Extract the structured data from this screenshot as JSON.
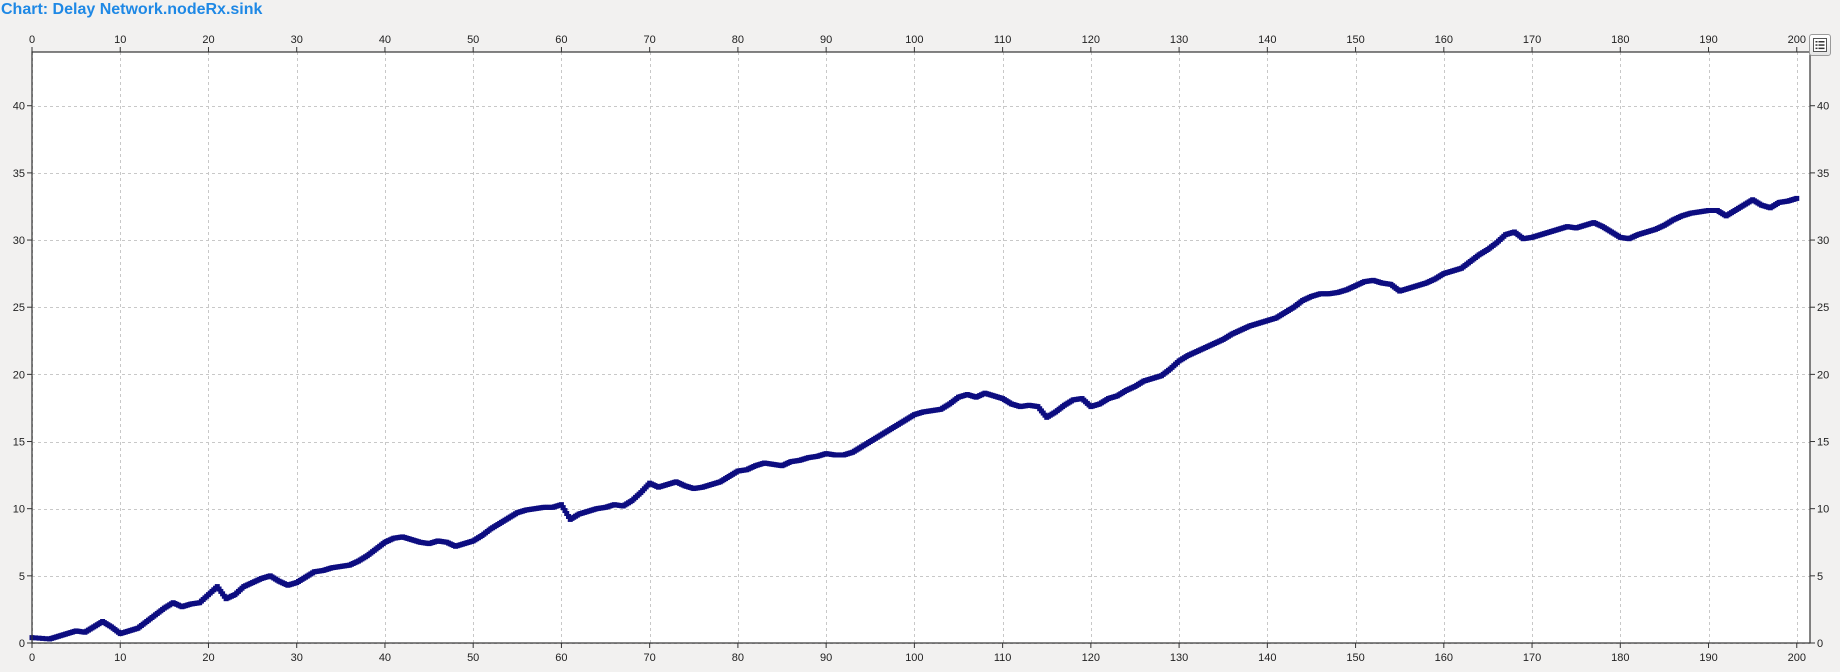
{
  "window": {
    "title": "Chart: Delay Network.nodeRx.sink"
  },
  "colors": {
    "title": "#1e88e5",
    "series": "#0d0d80",
    "grid": "#c8c8c8",
    "plot_bg": "#ffffff",
    "page_bg": "#f2f1f0"
  },
  "icons": {
    "legend_toggle": "legend-list-icon"
  },
  "chart_data": {
    "type": "scatter",
    "title": "Chart: Delay Network.nodeRx.sink",
    "xlabel": "",
    "ylabel": "",
    "xlim": [
      0,
      201.5
    ],
    "ylim": [
      0,
      44
    ],
    "xticks": [
      0,
      10,
      20,
      30,
      40,
      50,
      60,
      70,
      80,
      90,
      100,
      110,
      120,
      130,
      140,
      150,
      160,
      170,
      180,
      190,
      200
    ],
    "yticks": [
      0,
      5,
      10,
      15,
      20,
      25,
      30,
      35,
      40
    ],
    "x_axis_positions": [
      "top",
      "bottom"
    ],
    "y_axis_positions": [
      "left",
      "right"
    ],
    "grid": true,
    "grid_style": "dashed",
    "legend": "hidden",
    "series": [
      {
        "points": [
          [
            0,
            0.4
          ],
          [
            2,
            0.3
          ],
          [
            3,
            0.5
          ],
          [
            4,
            0.7
          ],
          [
            5,
            0.9
          ],
          [
            6,
            0.8
          ],
          [
            7,
            1.2
          ],
          [
            8,
            1.6
          ],
          [
            9,
            1.2
          ],
          [
            10,
            0.7
          ],
          [
            11,
            0.9
          ],
          [
            12,
            1.1
          ],
          [
            13,
            1.6
          ],
          [
            14,
            2.1
          ],
          [
            15,
            2.6
          ],
          [
            16,
            3.0
          ],
          [
            17,
            2.7
          ],
          [
            18,
            2.9
          ],
          [
            19,
            3.0
          ],
          [
            20,
            3.6
          ],
          [
            21,
            4.2
          ],
          [
            22,
            3.3
          ],
          [
            23,
            3.6
          ],
          [
            24,
            4.2
          ],
          [
            25,
            4.5
          ],
          [
            26,
            4.8
          ],
          [
            27,
            5.0
          ],
          [
            28,
            4.6
          ],
          [
            29,
            4.3
          ],
          [
            30,
            4.5
          ],
          [
            31,
            4.9
          ],
          [
            32,
            5.3
          ],
          [
            33,
            5.4
          ],
          [
            34,
            5.6
          ],
          [
            35,
            5.7
          ],
          [
            36,
            5.8
          ],
          [
            37,
            6.1
          ],
          [
            38,
            6.5
          ],
          [
            39,
            7.0
          ],
          [
            40,
            7.5
          ],
          [
            41,
            7.8
          ],
          [
            42,
            7.9
          ],
          [
            43,
            7.7
          ],
          [
            44,
            7.5
          ],
          [
            45,
            7.4
          ],
          [
            46,
            7.6
          ],
          [
            47,
            7.5
          ],
          [
            48,
            7.2
          ],
          [
            49,
            7.4
          ],
          [
            50,
            7.6
          ],
          [
            51,
            8.0
          ],
          [
            52,
            8.5
          ],
          [
            53,
            8.9
          ],
          [
            54,
            9.3
          ],
          [
            55,
            9.7
          ],
          [
            56,
            9.9
          ],
          [
            57,
            10.0
          ],
          [
            58,
            10.1
          ],
          [
            59,
            10.1
          ],
          [
            60,
            10.3
          ],
          [
            61,
            9.2
          ],
          [
            62,
            9.6
          ],
          [
            63,
            9.8
          ],
          [
            64,
            10.0
          ],
          [
            65,
            10.1
          ],
          [
            66,
            10.3
          ],
          [
            67,
            10.2
          ],
          [
            68,
            10.6
          ],
          [
            69,
            11.2
          ],
          [
            70,
            11.9
          ],
          [
            71,
            11.6
          ],
          [
            72,
            11.8
          ],
          [
            73,
            12.0
          ],
          [
            74,
            11.7
          ],
          [
            75,
            11.5
          ],
          [
            76,
            11.6
          ],
          [
            77,
            11.8
          ],
          [
            78,
            12.0
          ],
          [
            79,
            12.4
          ],
          [
            80,
            12.8
          ],
          [
            81,
            12.9
          ],
          [
            82,
            13.2
          ],
          [
            83,
            13.4
          ],
          [
            84,
            13.3
          ],
          [
            85,
            13.2
          ],
          [
            86,
            13.5
          ],
          [
            87,
            13.6
          ],
          [
            88,
            13.8
          ],
          [
            89,
            13.9
          ],
          [
            90,
            14.1
          ],
          [
            91,
            14.0
          ],
          [
            92,
            14.0
          ],
          [
            93,
            14.2
          ],
          [
            94,
            14.6
          ],
          [
            95,
            15.0
          ],
          [
            96,
            15.4
          ],
          [
            97,
            15.8
          ],
          [
            98,
            16.2
          ],
          [
            99,
            16.6
          ],
          [
            100,
            17.0
          ],
          [
            101,
            17.2
          ],
          [
            102,
            17.3
          ],
          [
            103,
            17.4
          ],
          [
            104,
            17.8
          ],
          [
            105,
            18.3
          ],
          [
            106,
            18.5
          ],
          [
            107,
            18.3
          ],
          [
            108,
            18.6
          ],
          [
            109,
            18.4
          ],
          [
            110,
            18.2
          ],
          [
            111,
            17.8
          ],
          [
            112,
            17.6
          ],
          [
            113,
            17.7
          ],
          [
            114,
            17.6
          ],
          [
            115,
            16.8
          ],
          [
            116,
            17.2
          ],
          [
            117,
            17.7
          ],
          [
            118,
            18.1
          ],
          [
            119,
            18.2
          ],
          [
            120,
            17.6
          ],
          [
            121,
            17.8
          ],
          [
            122,
            18.2
          ],
          [
            123,
            18.4
          ],
          [
            124,
            18.8
          ],
          [
            125,
            19.1
          ],
          [
            126,
            19.5
          ],
          [
            127,
            19.7
          ],
          [
            128,
            19.9
          ],
          [
            129,
            20.4
          ],
          [
            130,
            21.0
          ],
          [
            131,
            21.4
          ],
          [
            132,
            21.7
          ],
          [
            133,
            22.0
          ],
          [
            134,
            22.3
          ],
          [
            135,
            22.6
          ],
          [
            136,
            23.0
          ],
          [
            137,
            23.3
          ],
          [
            138,
            23.6
          ],
          [
            139,
            23.8
          ],
          [
            140,
            24.0
          ],
          [
            141,
            24.2
          ],
          [
            142,
            24.6
          ],
          [
            143,
            25.0
          ],
          [
            144,
            25.5
          ],
          [
            145,
            25.8
          ],
          [
            146,
            26.0
          ],
          [
            147,
            26.0
          ],
          [
            148,
            26.1
          ],
          [
            149,
            26.3
          ],
          [
            150,
            26.6
          ],
          [
            151,
            26.9
          ],
          [
            152,
            27.0
          ],
          [
            153,
            26.8
          ],
          [
            154,
            26.7
          ],
          [
            155,
            26.2
          ],
          [
            156,
            26.4
          ],
          [
            157,
            26.6
          ],
          [
            158,
            26.8
          ],
          [
            159,
            27.1
          ],
          [
            160,
            27.5
          ],
          [
            161,
            27.7
          ],
          [
            162,
            27.9
          ],
          [
            163,
            28.4
          ],
          [
            164,
            28.9
          ],
          [
            165,
            29.3
          ],
          [
            166,
            29.8
          ],
          [
            167,
            30.4
          ],
          [
            168,
            30.6
          ],
          [
            169,
            30.1
          ],
          [
            170,
            30.2
          ],
          [
            171,
            30.4
          ],
          [
            172,
            30.6
          ],
          [
            173,
            30.8
          ],
          [
            174,
            31.0
          ],
          [
            175,
            30.9
          ],
          [
            176,
            31.1
          ],
          [
            177,
            31.3
          ],
          [
            178,
            31.0
          ],
          [
            179,
            30.6
          ],
          [
            180,
            30.2
          ],
          [
            181,
            30.1
          ],
          [
            182,
            30.4
          ],
          [
            183,
            30.6
          ],
          [
            184,
            30.8
          ],
          [
            185,
            31.1
          ],
          [
            186,
            31.5
          ],
          [
            187,
            31.8
          ],
          [
            188,
            32.0
          ],
          [
            189,
            32.1
          ],
          [
            190,
            32.2
          ],
          [
            191,
            32.2
          ],
          [
            192,
            31.8
          ],
          [
            193,
            32.2
          ],
          [
            194,
            32.6
          ],
          [
            195,
            33.0
          ],
          [
            196,
            32.6
          ],
          [
            197,
            32.4
          ],
          [
            198,
            32.8
          ],
          [
            199,
            32.9
          ],
          [
            200,
            33.1
          ]
        ]
      }
    ]
  }
}
